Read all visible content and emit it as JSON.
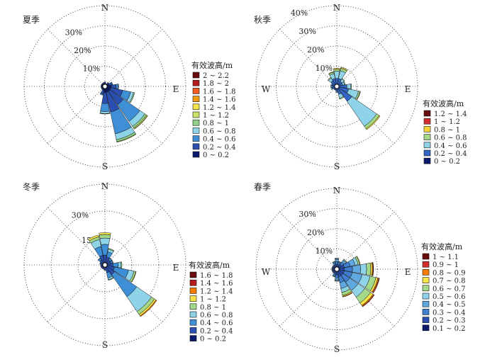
{
  "chart_data": [
    {
      "type": "wind-rose",
      "title": "夏季",
      "rings": [
        {
          "value": 10,
          "label": "10%"
        },
        {
          "value": 20,
          "label": "20%"
        },
        {
          "value": 30,
          "label": "30%"
        },
        {
          "value": 40,
          "label": ""
        }
      ],
      "ring_max": 40,
      "direction_labels": {
        "N": "N",
        "E": "E",
        "S": "S"
      },
      "legend_title": "有效波高/m",
      "legend_entries": [
        {
          "label": "2 ~ 2.2",
          "color": "#6a0d0d"
        },
        {
          "label": "1.8 ~ 2",
          "color": "#b71c1c"
        },
        {
          "label": "1.6 ~ 1.8",
          "color": "#f25c1e"
        },
        {
          "label": "1.4 ~ 1.6",
          "color": "#f39c12"
        },
        {
          "label": "1.2 ~ 1.4",
          "color": "#f7e34a"
        },
        {
          "label": "1 ~ 1.2",
          "color": "#c9e26a"
        },
        {
          "label": "0.8 ~ 1",
          "color": "#8fd18a"
        },
        {
          "label": "0.6 ~ 0.8",
          "color": "#8fd3e9"
        },
        {
          "label": "0.4 ~ 0.6",
          "color": "#3f8fd6"
        },
        {
          "label": "0.2 ~ 0.4",
          "color": "#2a4fb0"
        },
        {
          "label": "0 ~ 0.2",
          "color": "#0b1a6e"
        }
      ],
      "directions_deg": [
        0,
        22.5,
        45,
        67.5,
        90,
        112.5,
        135,
        157.5,
        180,
        202.5,
        225,
        247.5,
        270,
        292.5,
        315,
        337.5
      ],
      "frequency_by_class": [
        [
          1.5,
          0.8,
          0,
          0,
          0,
          0,
          0,
          0,
          0,
          0,
          0
        ],
        [
          1.0,
          0.5,
          0,
          0,
          0,
          0,
          0,
          0,
          0,
          0,
          0
        ],
        [
          1.5,
          0.8,
          0.2,
          0,
          0,
          0,
          0,
          0,
          0,
          0,
          0
        ],
        [
          2.0,
          1.5,
          0.5,
          0,
          0,
          0,
          0,
          0,
          0,
          0,
          0
        ],
        [
          3.0,
          2.5,
          1.0,
          0.3,
          0,
          0,
          0,
          0,
          0,
          0,
          0
        ],
        [
          3.0,
          6.0,
          4.0,
          1.5,
          0.5,
          0,
          0,
          0,
          0,
          0,
          0
        ],
        [
          3.0,
          8.0,
          10.0,
          3.0,
          1.0,
          0.5,
          0.2,
          0,
          0,
          0,
          0
        ],
        [
          3.0,
          10.0,
          11.0,
          3.0,
          1.0,
          0.3,
          0,
          0,
          0,
          0,
          0
        ],
        [
          3.0,
          5.5,
          4.0,
          1.0,
          0.2,
          0,
          0,
          0,
          0,
          0,
          0
        ],
        [
          2.0,
          2.0,
          0.5,
          0,
          0,
          0,
          0,
          0,
          0,
          0,
          0
        ],
        [
          1.5,
          0.6,
          0,
          0,
          0,
          0,
          0,
          0,
          0,
          0,
          0
        ],
        [
          1.5,
          0.5,
          0,
          0,
          0,
          0,
          0,
          0,
          0,
          0,
          0
        ],
        [
          1.5,
          0.5,
          0,
          0,
          0,
          0,
          0,
          0,
          0,
          0,
          0
        ],
        [
          1.5,
          0.5,
          0,
          0,
          0,
          0,
          0,
          0,
          0,
          0,
          0
        ],
        [
          1.5,
          0.5,
          0,
          0,
          0,
          0,
          0,
          0,
          0,
          0,
          0
        ],
        [
          1.5,
          0.5,
          0,
          0,
          0,
          0,
          0,
          0,
          0,
          0,
          0
        ]
      ]
    },
    {
      "type": "wind-rose",
      "title": "秋季",
      "rings": [
        {
          "value": 10,
          "label": "10%"
        },
        {
          "value": 20,
          "label": "20%"
        },
        {
          "value": 30,
          "label": "30%"
        },
        {
          "value": 40,
          "label": "40%"
        }
      ],
      "ring_max": 40,
      "direction_labels": {
        "N": "N",
        "E": "E",
        "S": "S",
        "W": "W"
      },
      "legend_title": "有效波高/m",
      "legend_entries": [
        {
          "label": "1.2 ~ 1.4",
          "color": "#6a0d0d"
        },
        {
          "label": "1 ~ 1.2",
          "color": "#d32f2f"
        },
        {
          "label": "0.8 ~ 1",
          "color": "#f7d53a"
        },
        {
          "label": "0.6 ~ 0.8",
          "color": "#a5d98a"
        },
        {
          "label": "0.4 ~ 0.6",
          "color": "#8fd3e9"
        },
        {
          "label": "0.2 ~ 0.4",
          "color": "#3366c6"
        },
        {
          "label": "0 ~ 0.2",
          "color": "#0b1a6e"
        }
      ],
      "directions_deg": [
        0,
        22.5,
        45,
        67.5,
        90,
        112.5,
        135,
        157.5,
        180,
        202.5,
        225,
        247.5,
        270,
        292.5,
        315,
        337.5
      ],
      "frequency_by_class": [
        [
          1.0,
          3.0,
          3.5,
          1.0,
          0.5,
          0,
          0
        ],
        [
          1.0,
          3.0,
          4.0,
          1.2,
          0.5,
          0,
          0
        ],
        [
          1.0,
          2.0,
          1.5,
          0.3,
          0,
          0,
          0
        ],
        [
          1.0,
          2.0,
          1.0,
          0.3,
          0,
          0,
          0
        ],
        [
          1.0,
          4.0,
          2.0,
          0.3,
          0,
          0,
          0
        ],
        [
          1.0,
          5.0,
          5.0,
          0.8,
          0.2,
          0,
          0
        ],
        [
          1.0,
          8.0,
          15.0,
          1.5,
          0.5,
          0,
          0
        ],
        [
          1.0,
          3.0,
          2.0,
          0.5,
          0,
          0,
          0
        ],
        [
          1.0,
          1.5,
          0.5,
          0,
          0,
          0,
          0
        ],
        [
          1.0,
          1.0,
          0,
          0,
          0,
          0,
          0
        ],
        [
          1.0,
          1.0,
          0,
          0,
          0,
          0,
          0
        ],
        [
          1.0,
          1.5,
          0.5,
          0,
          0,
          0,
          0
        ],
        [
          1.0,
          1.5,
          0.5,
          0,
          0,
          0,
          0
        ],
        [
          1.0,
          1.5,
          0.5,
          0,
          0,
          0,
          0
        ],
        [
          1.0,
          2.5,
          1.5,
          0.5,
          0,
          0,
          0
        ],
        [
          1.0,
          3.0,
          2.5,
          0.8,
          0.2,
          0,
          0
        ]
      ]
    },
    {
      "type": "wind-rose",
      "title": "冬季",
      "rings": [
        {
          "value": 15,
          "label": "15%"
        },
        {
          "value": 30,
          "label": "30%"
        },
        {
          "value": 45,
          "label": ""
        }
      ],
      "ring_max": 45,
      "direction_labels": {
        "N": "N",
        "E": "E",
        "S": "S"
      },
      "legend_title": "有效波高/m",
      "legend_entries": [
        {
          "label": "1.6 ~ 1.8",
          "color": "#6a0d0d"
        },
        {
          "label": "1.4 ~ 1.6",
          "color": "#b71c1c"
        },
        {
          "label": "1.2 ~ 1.4",
          "color": "#f57c00"
        },
        {
          "label": "1 ~ 1.2",
          "color": "#f7e34a"
        },
        {
          "label": "0.8 ~ 1",
          "color": "#a5d98a"
        },
        {
          "label": "0.6 ~ 0.8",
          "color": "#8fd3e9"
        },
        {
          "label": "0.4 ~ 0.6",
          "color": "#3f8fd6"
        },
        {
          "label": "0.2 ~ 0.4",
          "color": "#2a4fb0"
        },
        {
          "label": "0 ~ 0.2",
          "color": "#0b1a6e"
        }
      ],
      "directions_deg": [
        0,
        22.5,
        45,
        67.5,
        90,
        112.5,
        135,
        157.5,
        180,
        202.5,
        225,
        247.5,
        270,
        292.5,
        315,
        337.5
      ],
      "frequency_by_class": [
        [
          1.5,
          4.0,
          6.0,
          3.5,
          2.0,
          1.0,
          0,
          0,
          0
        ],
        [
          1.5,
          3.0,
          3.0,
          1.5,
          0.5,
          0,
          0,
          0,
          0
        ],
        [
          1.5,
          2.0,
          1.0,
          0.3,
          0,
          0,
          0,
          0,
          0
        ],
        [
          1.5,
          2.0,
          1.0,
          0.3,
          0,
          0,
          0,
          0,
          0
        ],
        [
          1.5,
          3.0,
          3.0,
          1.5,
          0.5,
          0,
          0,
          0,
          0
        ],
        [
          1.5,
          4.0,
          8.0,
          3.0,
          1.0,
          0.3,
          0,
          0,
          0
        ],
        [
          1.5,
          5.0,
          15.0,
          10.0,
          2.0,
          1.0,
          0.5,
          0,
          0
        ],
        [
          1.5,
          3.0,
          3.0,
          1.0,
          0.3,
          0,
          0,
          0,
          0
        ],
        [
          1.5,
          1.0,
          0.5,
          0,
          0,
          0,
          0,
          0,
          0
        ],
        [
          1.5,
          1.0,
          0,
          0,
          0,
          0,
          0,
          0,
          0
        ],
        [
          1.5,
          1.0,
          0,
          0,
          0,
          0,
          0,
          0,
          0
        ],
        [
          1.5,
          1.0,
          0,
          0,
          0,
          0,
          0,
          0,
          0
        ],
        [
          1.5,
          1.0,
          0,
          0,
          0,
          0,
          0,
          0,
          0
        ],
        [
          1.5,
          1.0,
          0.5,
          0,
          0,
          0,
          0,
          0,
          0
        ],
        [
          1.5,
          2.0,
          1.0,
          0.3,
          0,
          0,
          0,
          0,
          0
        ],
        [
          1.5,
          4.0,
          5.0,
          4.0,
          1.5,
          1.0,
          0,
          0,
          0
        ]
      ]
    },
    {
      "type": "wind-rose",
      "title": "春季",
      "rings": [
        {
          "value": 10,
          "label": "10%"
        },
        {
          "value": 20,
          "label": "20%"
        },
        {
          "value": 30,
          "label": "30%"
        },
        {
          "value": 40,
          "label": ""
        }
      ],
      "ring_max": 40,
      "direction_labels": {
        "N": "N",
        "E": "E",
        "S": "S",
        "W": "W"
      },
      "legend_title": "有效波高/m",
      "legend_entries": [
        {
          "label": "1 ~ 1.1",
          "color": "#6a0d0d"
        },
        {
          "label": "0.9 ~ 1",
          "color": "#d32f2f"
        },
        {
          "label": "0.8 ~ 0.9",
          "color": "#f57c00"
        },
        {
          "label": "0.7 ~ 0.8",
          "color": "#f7e34a"
        },
        {
          "label": "0.6 ~ 0.7",
          "color": "#a5d98a"
        },
        {
          "label": "0.5 ~ 0.6",
          "color": "#8fd3e9"
        },
        {
          "label": "0.4 ~ 0.5",
          "color": "#5fa8e0"
        },
        {
          "label": "0.3 ~ 0.4",
          "color": "#3f7fd0"
        },
        {
          "label": "0.2 ~ 0.3",
          "color": "#2a4fb0"
        },
        {
          "label": "0.1 ~ 0.2",
          "color": "#0b1a6e"
        }
      ],
      "directions_deg": [
        0,
        22.5,
        45,
        67.5,
        90,
        112.5,
        135,
        157.5,
        180,
        202.5,
        225,
        247.5,
        270,
        292.5,
        315,
        337.5
      ],
      "frequency_by_class": [
        [
          0.8,
          1.5,
          1.5,
          1.0,
          0.5,
          0.2,
          0,
          0,
          0,
          0
        ],
        [
          0.8,
          1.5,
          1.0,
          0.5,
          0.2,
          0,
          0,
          0,
          0,
          0
        ],
        [
          0.8,
          2.0,
          1.5,
          1.0,
          0.5,
          0.3,
          0,
          0,
          0,
          0
        ],
        [
          0.8,
          3.0,
          3.0,
          2.5,
          1.5,
          0.8,
          0.3,
          0,
          0,
          0
        ],
        [
          0.8,
          3.0,
          4.0,
          4.0,
          3.0,
          2.0,
          0.8,
          0.4,
          0.2,
          0
        ],
        [
          0.8,
          3.0,
          4.0,
          5.0,
          4.0,
          3.0,
          1.0,
          0.5,
          0.3,
          0
        ],
        [
          0.8,
          3.0,
          4.0,
          5.0,
          4.0,
          3.5,
          1.5,
          0.5,
          0.3,
          0
        ],
        [
          0.8,
          3.0,
          3.0,
          3.0,
          2.0,
          1.5,
          0.5,
          0.3,
          0,
          0
        ],
        [
          0.8,
          2.0,
          1.5,
          1.0,
          0.5,
          0.2,
          0,
          0,
          0,
          0
        ],
        [
          0.8,
          1.5,
          1.0,
          0.5,
          0.2,
          0,
          0,
          0,
          0,
          0
        ],
        [
          0.8,
          1.0,
          0.5,
          0.2,
          0,
          0,
          0,
          0,
          0,
          0
        ],
        [
          0.8,
          1.0,
          0.5,
          0.2,
          0,
          0,
          0,
          0,
          0,
          0
        ],
        [
          0.8,
          1.0,
          0.5,
          0.2,
          0,
          0,
          0,
          0,
          0,
          0
        ],
        [
          0.8,
          1.0,
          0.5,
          0.2,
          0,
          0,
          0,
          0,
          0,
          0
        ],
        [
          0.8,
          1.0,
          0.5,
          0.2,
          0,
          0,
          0,
          0,
          0,
          0
        ],
        [
          0.8,
          1.5,
          1.0,
          0.5,
          0.2,
          0,
          0,
          0,
          0,
          0
        ]
      ]
    }
  ]
}
